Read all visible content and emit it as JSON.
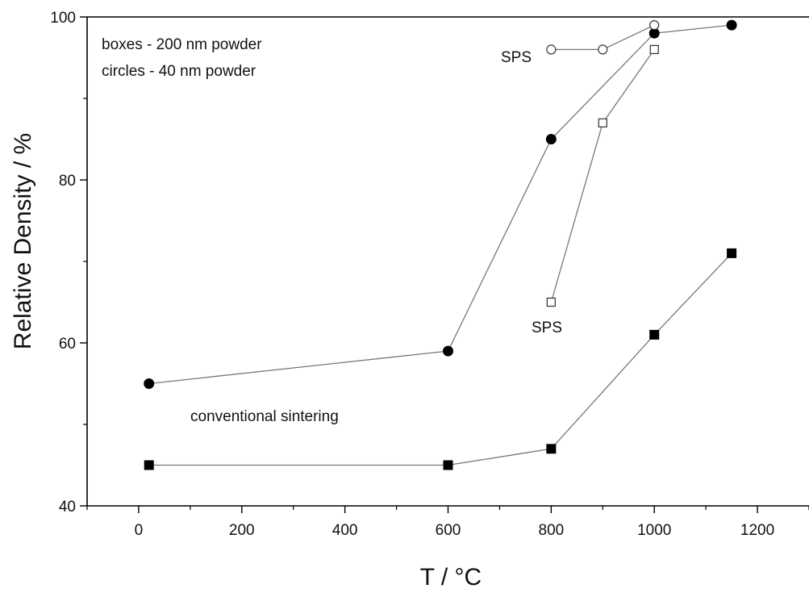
{
  "chart_data": {
    "type": "line",
    "xlabel": "T / °C",
    "ylabel": "Relative Density / %",
    "xlim": [
      -100,
      1300
    ],
    "ylim": [
      40,
      100
    ],
    "xticks": [
      0,
      200,
      400,
      600,
      800,
      1000,
      1200
    ],
    "xticks_minor": [
      -100,
      100,
      300,
      500,
      700,
      900,
      1100,
      1300
    ],
    "yticks": [
      40,
      60,
      80,
      100
    ],
    "yticks_minor": [
      50,
      70,
      90
    ],
    "grid": false,
    "series": [
      {
        "key": "circles_conventional",
        "marker": "circle",
        "filled": true,
        "x": [
          20,
          600,
          800,
          1000,
          1150
        ],
        "y": [
          55,
          59,
          85,
          98,
          99
        ]
      },
      {
        "key": "boxes_conventional",
        "marker": "square",
        "filled": true,
        "x": [
          20,
          600,
          800,
          1000,
          1150
        ],
        "y": [
          45,
          45,
          47,
          61,
          71
        ]
      },
      {
        "key": "circles_sps",
        "marker": "circle",
        "filled": false,
        "x": [
          800,
          900,
          1000
        ],
        "y": [
          96,
          96,
          99
        ]
      },
      {
        "key": "boxes_sps",
        "marker": "square",
        "filled": false,
        "x": [
          800,
          900,
          1000
        ],
        "y": [
          65,
          87,
          96
        ]
      }
    ],
    "annotations": {
      "legend_line1": "boxes - 200 nm powder",
      "legend_line2": "circles - 40 nm powder",
      "sps_upper": "SPS",
      "sps_lower": "SPS",
      "conventional": "conventional sintering"
    },
    "colors": {
      "axis": "#000000",
      "line": "#777777",
      "marker": "#000000"
    }
  }
}
